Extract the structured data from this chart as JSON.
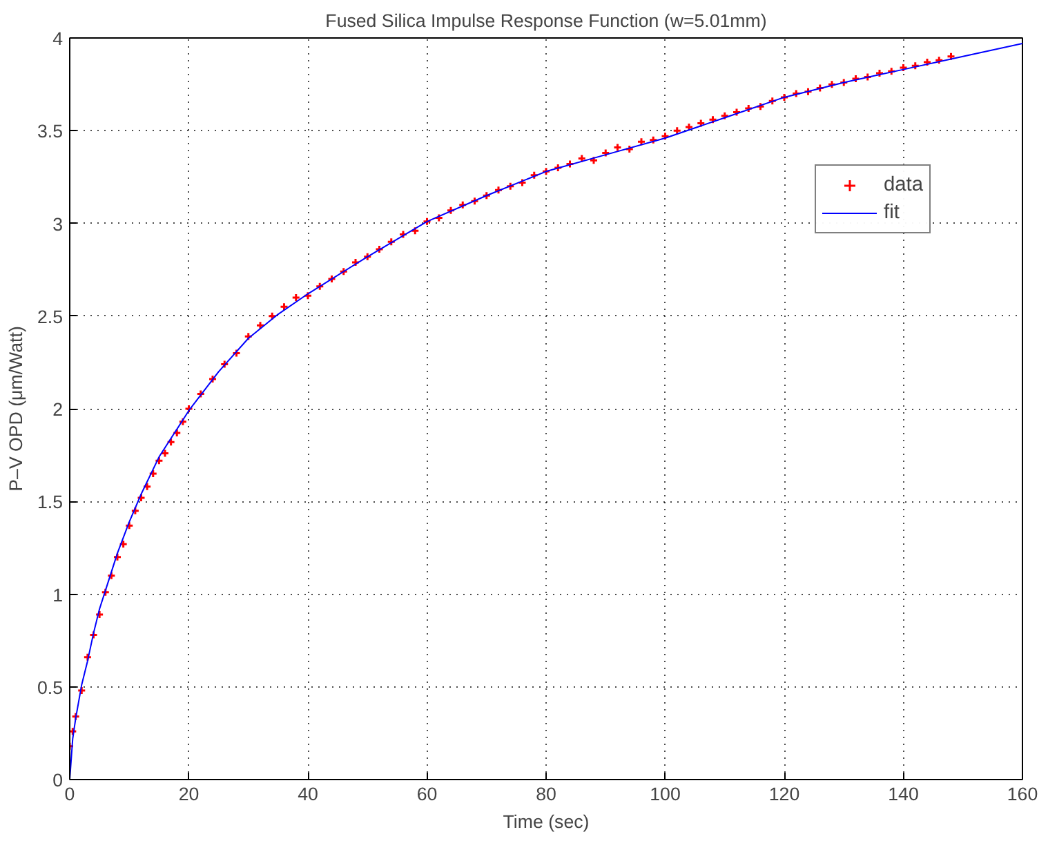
{
  "chart_data": {
    "type": "scatter",
    "title": "Fused Silica Impulse Response Function (w=5.01mm)",
    "xlabel": "Time (sec)",
    "ylabel": "P–V OPD (μm/Watt)",
    "xlim": [
      0,
      160
    ],
    "ylim": [
      0,
      4
    ],
    "xticks": [
      0,
      20,
      40,
      60,
      80,
      100,
      120,
      140,
      160
    ],
    "yticks": [
      0,
      0.5,
      1,
      1.5,
      2,
      2.5,
      3,
      3.5,
      4
    ],
    "grid": true,
    "legend": "top right",
    "marker": "cross",
    "series": [
      {
        "name": "data",
        "color": "#ff0000",
        "x": [
          0,
          0.5,
          1,
          2,
          3,
          4,
          5,
          6,
          7,
          8,
          9,
          10,
          11,
          12,
          13,
          14,
          15,
          16,
          17,
          18,
          19,
          20,
          22,
          24,
          26,
          28,
          30,
          32,
          34,
          36,
          38,
          40,
          42,
          44,
          46,
          48,
          50,
          52,
          54,
          56,
          58,
          60,
          62,
          64,
          66,
          68,
          70,
          72,
          74,
          76,
          78,
          80,
          82,
          84,
          86,
          88,
          90,
          92,
          94,
          96,
          98,
          100,
          102,
          104,
          106,
          108,
          110,
          112,
          114,
          116,
          118,
          120,
          122,
          124,
          126,
          128,
          130,
          132,
          134,
          136,
          138,
          140,
          142,
          144,
          146,
          148
        ],
        "values": [
          0.18,
          0.26,
          0.34,
          0.48,
          0.66,
          0.78,
          0.89,
          1.01,
          1.1,
          1.2,
          1.27,
          1.37,
          1.45,
          1.52,
          1.58,
          1.65,
          1.72,
          1.76,
          1.82,
          1.87,
          1.93,
          2.0,
          2.08,
          2.16,
          2.24,
          2.3,
          2.39,
          2.45,
          2.5,
          2.55,
          2.6,
          2.61,
          2.66,
          2.7,
          2.74,
          2.79,
          2.82,
          2.86,
          2.9,
          2.94,
          2.96,
          3.01,
          3.03,
          3.07,
          3.1,
          3.12,
          3.15,
          3.18,
          3.2,
          3.22,
          3.26,
          3.28,
          3.3,
          3.32,
          3.35,
          3.34,
          3.38,
          3.41,
          3.4,
          3.44,
          3.45,
          3.47,
          3.5,
          3.52,
          3.54,
          3.56,
          3.58,
          3.6,
          3.62,
          3.63,
          3.66,
          3.68,
          3.7,
          3.71,
          3.73,
          3.75,
          3.76,
          3.78,
          3.79,
          3.81,
          3.82,
          3.84,
          3.85,
          3.87,
          3.88,
          3.9
        ]
      },
      {
        "name": "fit",
        "type": "line",
        "marker": "none",
        "line_style": "solid",
        "color": "#0000ff",
        "x": [
          0,
          0.5,
          1,
          2,
          3,
          4,
          5,
          6,
          8,
          10,
          12,
          15,
          20,
          25,
          30,
          35,
          40,
          50,
          60,
          70,
          80,
          90,
          100,
          110,
          120,
          130,
          140,
          150,
          160
        ],
        "values": [
          0,
          0.22,
          0.33,
          0.51,
          0.64,
          0.79,
          0.92,
          1.02,
          1.22,
          1.39,
          1.54,
          1.74,
          1.99,
          2.2,
          2.38,
          2.51,
          2.62,
          2.82,
          3.01,
          3.15,
          3.28,
          3.37,
          3.46,
          3.57,
          3.68,
          3.76,
          3.83,
          3.9,
          3.97
        ]
      }
    ]
  }
}
